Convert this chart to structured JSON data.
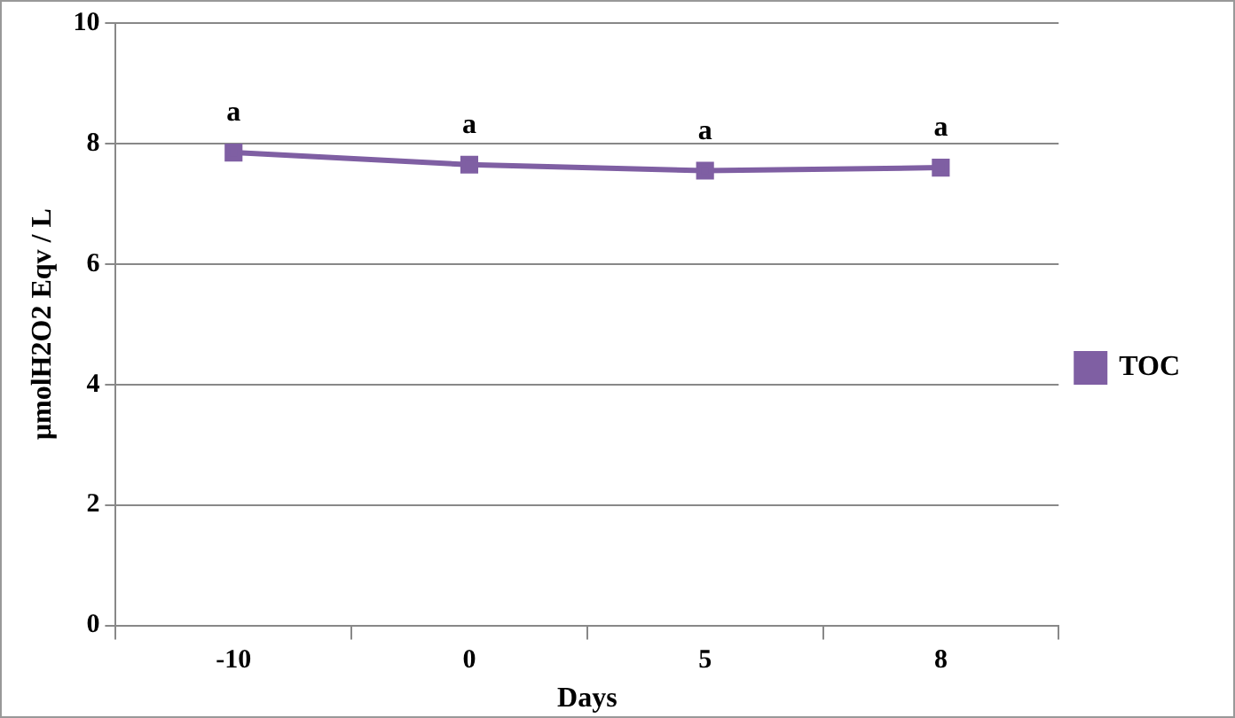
{
  "chart_data": {
    "type": "line",
    "xlabel": "Days",
    "ylabel": "µmolH2O2 Eqv / L",
    "categories": [
      "-10",
      "0",
      "5",
      "8"
    ],
    "series": [
      {
        "name": "TOC",
        "color": "#7f5fa3",
        "values": [
          7.85,
          7.65,
          7.55,
          7.6
        ]
      }
    ],
    "ylim": [
      0,
      10
    ],
    "yticks": [
      0,
      2,
      4,
      6,
      8,
      10
    ],
    "grid": "y",
    "legend": "right",
    "marker": "square",
    "line_style": "solid",
    "annotations": [
      {
        "text": "a",
        "x": "-10",
        "y": 7.85
      },
      {
        "text": "a",
        "x": "0",
        "y": 7.65
      },
      {
        "text": "a",
        "x": "5",
        "y": 7.55
      },
      {
        "text": "a",
        "x": "8",
        "y": 7.6
      }
    ]
  }
}
